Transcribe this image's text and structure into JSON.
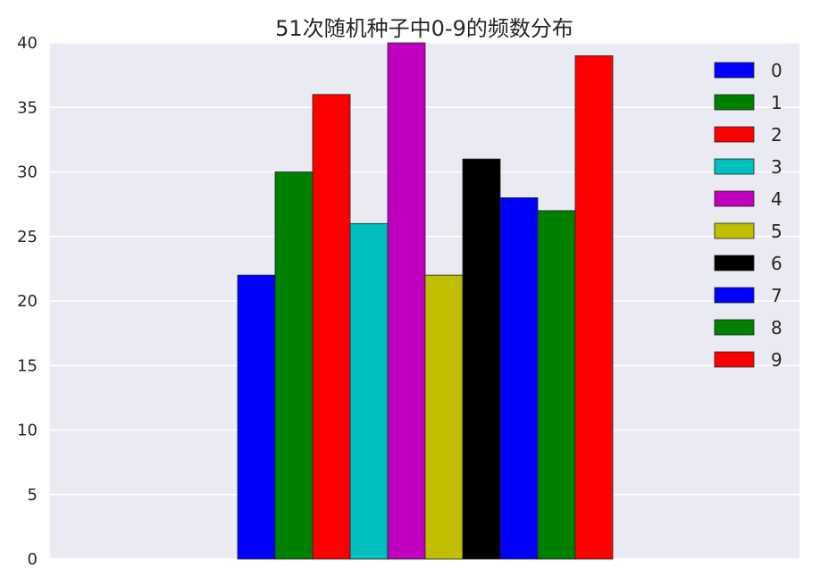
{
  "chart_data": {
    "type": "bar",
    "title": "51次随机种子中0-9的频数分布",
    "xlabel": "",
    "ylabel": "",
    "ylim": [
      0,
      40
    ],
    "yticks": [
      0,
      5,
      10,
      15,
      20,
      25,
      30,
      35,
      40
    ],
    "grid": true,
    "legend_position": "top-right",
    "series": [
      {
        "name": "0",
        "value": 22,
        "color": "#0000ff"
      },
      {
        "name": "1",
        "value": 30,
        "color": "#008000"
      },
      {
        "name": "2",
        "value": 36,
        "color": "#ff0000"
      },
      {
        "name": "3",
        "value": 26,
        "color": "#00bfbf"
      },
      {
        "name": "4",
        "value": 40,
        "color": "#bf00bf"
      },
      {
        "name": "5",
        "value": 22,
        "color": "#bfbf00"
      },
      {
        "name": "6",
        "value": 31,
        "color": "#000000"
      },
      {
        "name": "7",
        "value": 28,
        "color": "#0000ff"
      },
      {
        "name": "8",
        "value": 27,
        "color": "#008000"
      },
      {
        "name": "9",
        "value": 39,
        "color": "#ff0000"
      }
    ]
  }
}
